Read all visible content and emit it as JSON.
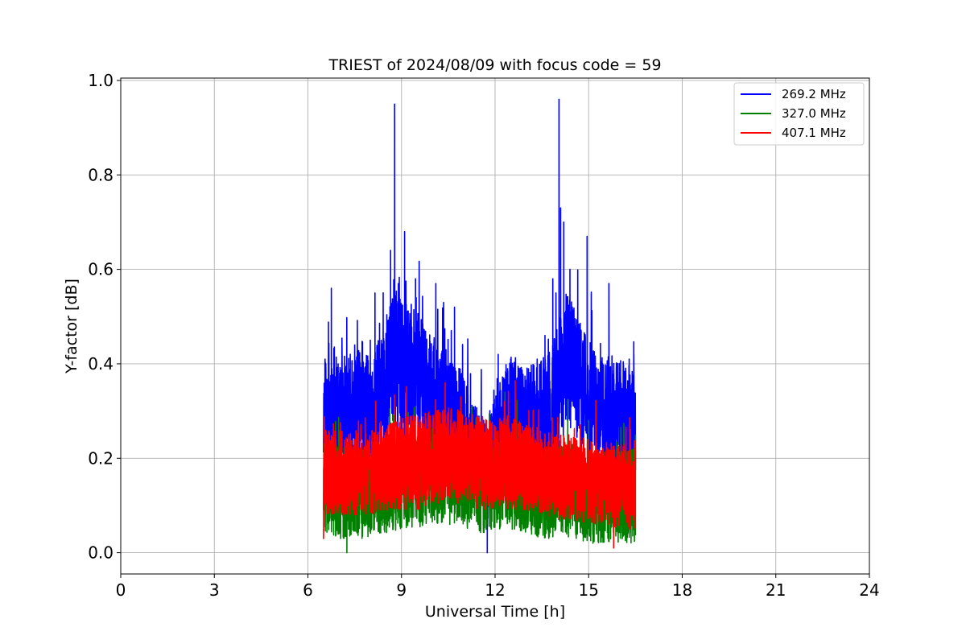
{
  "chart_data": {
    "type": "line",
    "title": "TRIEST of 2024/08/09 with focus code = 59",
    "xlabel": "Universal Time [h]",
    "ylabel": "Y-factor [dB]",
    "xlim": [
      0,
      24
    ],
    "ylim": [
      -0.045,
      1.005
    ],
    "xticks": [
      0,
      3,
      6,
      9,
      12,
      15,
      18,
      21,
      24
    ],
    "yticks": [
      0.0,
      0.2,
      0.4,
      0.6,
      0.8,
      1.0
    ],
    "xtick_labels": [
      "0",
      "3",
      "6",
      "9",
      "12",
      "15",
      "18",
      "21",
      "24"
    ],
    "ytick_labels": [
      "0.0",
      "0.2",
      "0.4",
      "0.6",
      "0.8",
      "1.0"
    ],
    "grid": true,
    "legend_position": "top-right",
    "series": [
      {
        "name": "269.2 MHz",
        "color": "#0000ff",
        "x": [
          6.5,
          6.75,
          7.0,
          7.25,
          7.5,
          7.75,
          8.0,
          8.25,
          8.5,
          8.75,
          9.0,
          9.25,
          9.5,
          9.75,
          10.0,
          10.25,
          10.5,
          10.75,
          11.0,
          11.25,
          11.5,
          11.75,
          12.0,
          12.25,
          12.5,
          12.75,
          13.0,
          13.25,
          13.5,
          13.75,
          14.0,
          14.25,
          14.5,
          14.75,
          15.0,
          15.25,
          15.5,
          15.75,
          16.0,
          16.25,
          16.5
        ],
        "y": [
          0.28,
          0.31,
          0.27,
          0.3,
          0.29,
          0.32,
          0.28,
          0.33,
          0.34,
          0.42,
          0.38,
          0.4,
          0.37,
          0.35,
          0.32,
          0.34,
          0.3,
          0.29,
          0.26,
          0.22,
          0.2,
          0.18,
          0.22,
          0.27,
          0.29,
          0.28,
          0.27,
          0.28,
          0.29,
          0.3,
          0.34,
          0.4,
          0.39,
          0.36,
          0.32,
          0.3,
          0.29,
          0.3,
          0.29,
          0.28,
          0.27
        ],
        "spread": [
          0.13,
          0.16,
          0.12,
          0.13,
          0.12,
          0.13,
          0.12,
          0.12,
          0.13,
          0.16,
          0.15,
          0.14,
          0.14,
          0.13,
          0.13,
          0.12,
          0.12,
          0.12,
          0.11,
          0.1,
          0.1,
          0.1,
          0.11,
          0.12,
          0.13,
          0.12,
          0.12,
          0.12,
          0.12,
          0.13,
          0.14,
          0.15,
          0.14,
          0.13,
          0.13,
          0.13,
          0.12,
          0.12,
          0.12,
          0.12,
          0.12
        ],
        "peaks": [
          [
            6.55,
            0.41
          ],
          [
            6.75,
            0.56
          ],
          [
            7.5,
            0.44
          ],
          [
            8.0,
            0.45
          ],
          [
            8.15,
            0.55
          ],
          [
            8.65,
            0.64
          ],
          [
            8.78,
            0.95
          ],
          [
            8.9,
            0.57
          ],
          [
            9.1,
            0.68
          ],
          [
            9.45,
            0.58
          ],
          [
            10.1,
            0.57
          ],
          [
            10.35,
            0.53
          ],
          [
            10.7,
            0.52
          ],
          [
            12.1,
            0.42
          ],
          [
            12.5,
            0.41
          ],
          [
            13.35,
            0.41
          ],
          [
            13.6,
            0.46
          ],
          [
            13.85,
            0.58
          ],
          [
            13.95,
            0.55
          ],
          [
            14.05,
            0.96
          ],
          [
            14.1,
            0.73
          ],
          [
            14.2,
            0.7
          ],
          [
            14.4,
            0.6
          ],
          [
            14.95,
            0.67
          ],
          [
            15.65,
            0.57
          ],
          [
            16.3,
            0.41
          ],
          [
            16.45,
            0.42
          ],
          [
            11.75,
            0.0
          ]
        ]
      },
      {
        "name": "327.0 MHz",
        "color": "#008000",
        "x": [
          6.5,
          7.0,
          7.5,
          8.0,
          8.5,
          9.0,
          9.5,
          10.0,
          10.5,
          11.0,
          11.5,
          12.0,
          12.5,
          13.0,
          13.5,
          14.0,
          14.5,
          15.0,
          15.5,
          16.0,
          16.5
        ],
        "y": [
          0.14,
          0.13,
          0.13,
          0.13,
          0.14,
          0.15,
          0.15,
          0.16,
          0.16,
          0.15,
          0.14,
          0.15,
          0.15,
          0.14,
          0.13,
          0.13,
          0.13,
          0.12,
          0.12,
          0.12,
          0.12
        ],
        "spread": [
          0.1,
          0.1,
          0.1,
          0.1,
          0.1,
          0.1,
          0.1,
          0.1,
          0.1,
          0.1,
          0.1,
          0.1,
          0.1,
          0.1,
          0.1,
          0.1,
          0.1,
          0.1,
          0.1,
          0.1,
          0.1
        ],
        "peaks": [
          [
            7.25,
            0.0
          ],
          [
            15.0,
            0.28
          ],
          [
            16.5,
            0.25
          ]
        ]
      },
      {
        "name": "407.1 MHz",
        "color": "#ff0000",
        "x": [
          6.5,
          7.0,
          7.5,
          8.0,
          8.5,
          9.0,
          9.5,
          10.0,
          10.5,
          11.0,
          11.5,
          12.0,
          12.5,
          13.0,
          13.5,
          14.0,
          14.5,
          15.0,
          15.5,
          16.0,
          16.5
        ],
        "y": [
          0.17,
          0.17,
          0.17,
          0.17,
          0.18,
          0.19,
          0.19,
          0.2,
          0.21,
          0.2,
          0.19,
          0.19,
          0.19,
          0.18,
          0.17,
          0.16,
          0.16,
          0.15,
          0.15,
          0.14,
          0.14
        ],
        "spread": [
          0.09,
          0.09,
          0.09,
          0.09,
          0.09,
          0.1,
          0.1,
          0.1,
          0.1,
          0.1,
          0.1,
          0.1,
          0.1,
          0.09,
          0.09,
          0.09,
          0.09,
          0.09,
          0.09,
          0.09,
          0.09
        ],
        "peaks": [
          [
            10.4,
            0.36
          ],
          [
            10.9,
            0.33
          ],
          [
            12.3,
            0.32
          ],
          [
            6.5,
            0.03
          ],
          [
            15.8,
            0.01
          ]
        ]
      }
    ]
  }
}
